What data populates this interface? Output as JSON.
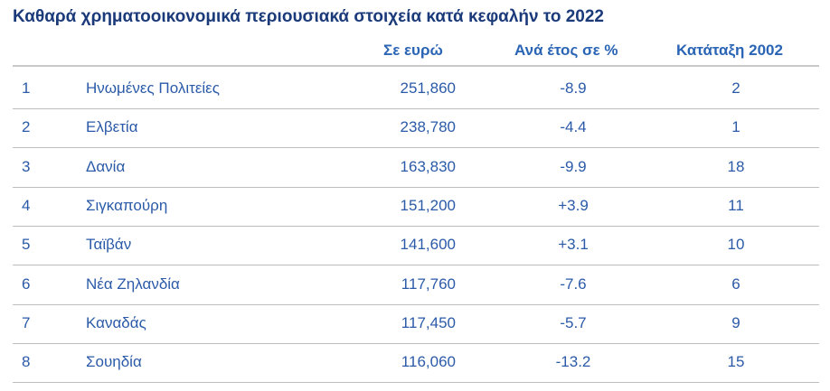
{
  "chart_data": {
    "type": "table",
    "title": "Καθαρά χρηματοοικονομικά περιουσιακά στοιχεία κατά κεφαλήν το 2022",
    "columns": [
      "",
      "",
      "Σε ευρώ",
      "Ανά έτος σε %",
      "Κατάταξη 2002"
    ],
    "rows": [
      {
        "rank": "1",
        "country": "Ηνωμένες Πολιτείες",
        "eur": "251,860",
        "pct": "-8.9",
        "rank2002": "2"
      },
      {
        "rank": "2",
        "country": "Ελβετία",
        "eur": "238,780",
        "pct": "-4.4",
        "rank2002": "1"
      },
      {
        "rank": "3",
        "country": "Δανία",
        "eur": "163,830",
        "pct": "-9.9",
        "rank2002": "18"
      },
      {
        "rank": "4",
        "country": "Σιγκαπούρη",
        "eur": "151,200",
        "pct": "+3.9",
        "rank2002": "11"
      },
      {
        "rank": "5",
        "country": "Ταϊβάν",
        "eur": "141,600",
        "pct": "+3.1",
        "rank2002": "10"
      },
      {
        "rank": "6",
        "country": "Νέα Ζηλανδία",
        "eur": "117,760",
        "pct": "-7.6",
        "rank2002": "6"
      },
      {
        "rank": "7",
        "country": "Καναδάς",
        "eur": "117,450",
        "pct": "-5.7",
        "rank2002": "9"
      },
      {
        "rank": "8",
        "country": "Σουηδία",
        "eur": "116,060",
        "pct": "-13.2",
        "rank2002": "15"
      }
    ]
  },
  "colors": {
    "title": "#1b3a7a",
    "header": "#2a64b5",
    "body_text": "#2b5aa8",
    "rule": "#bdbdbd"
  }
}
